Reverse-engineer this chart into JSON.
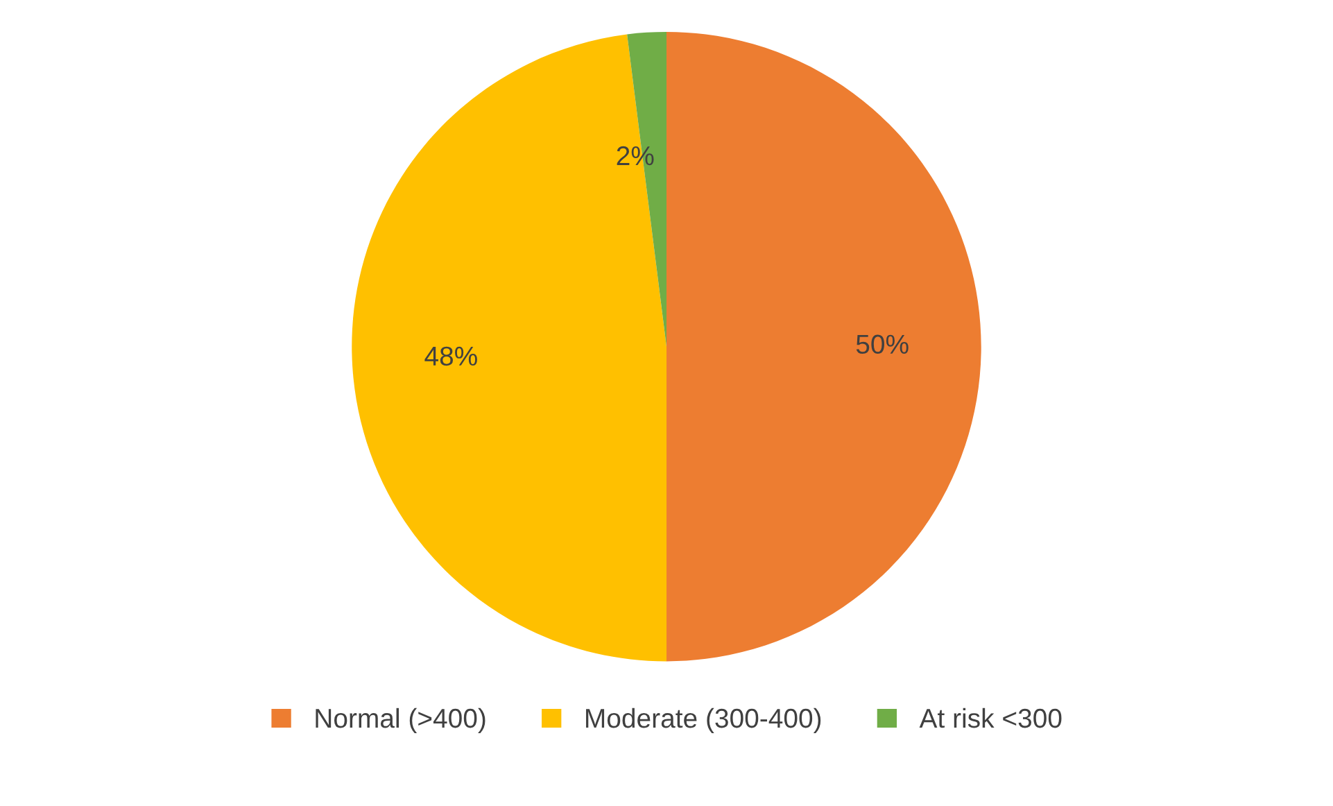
{
  "chart_data": {
    "type": "pie",
    "categories": [
      "Normal (>400)",
      "Moderate (300-400)",
      "At risk <300"
    ],
    "values": [
      50,
      48,
      2
    ],
    "value_labels": [
      "50%",
      "48%",
      "2%"
    ],
    "colors": [
      "#ed7d31",
      "#ffc000",
      "#70ad47"
    ],
    "legend": "bottom"
  }
}
